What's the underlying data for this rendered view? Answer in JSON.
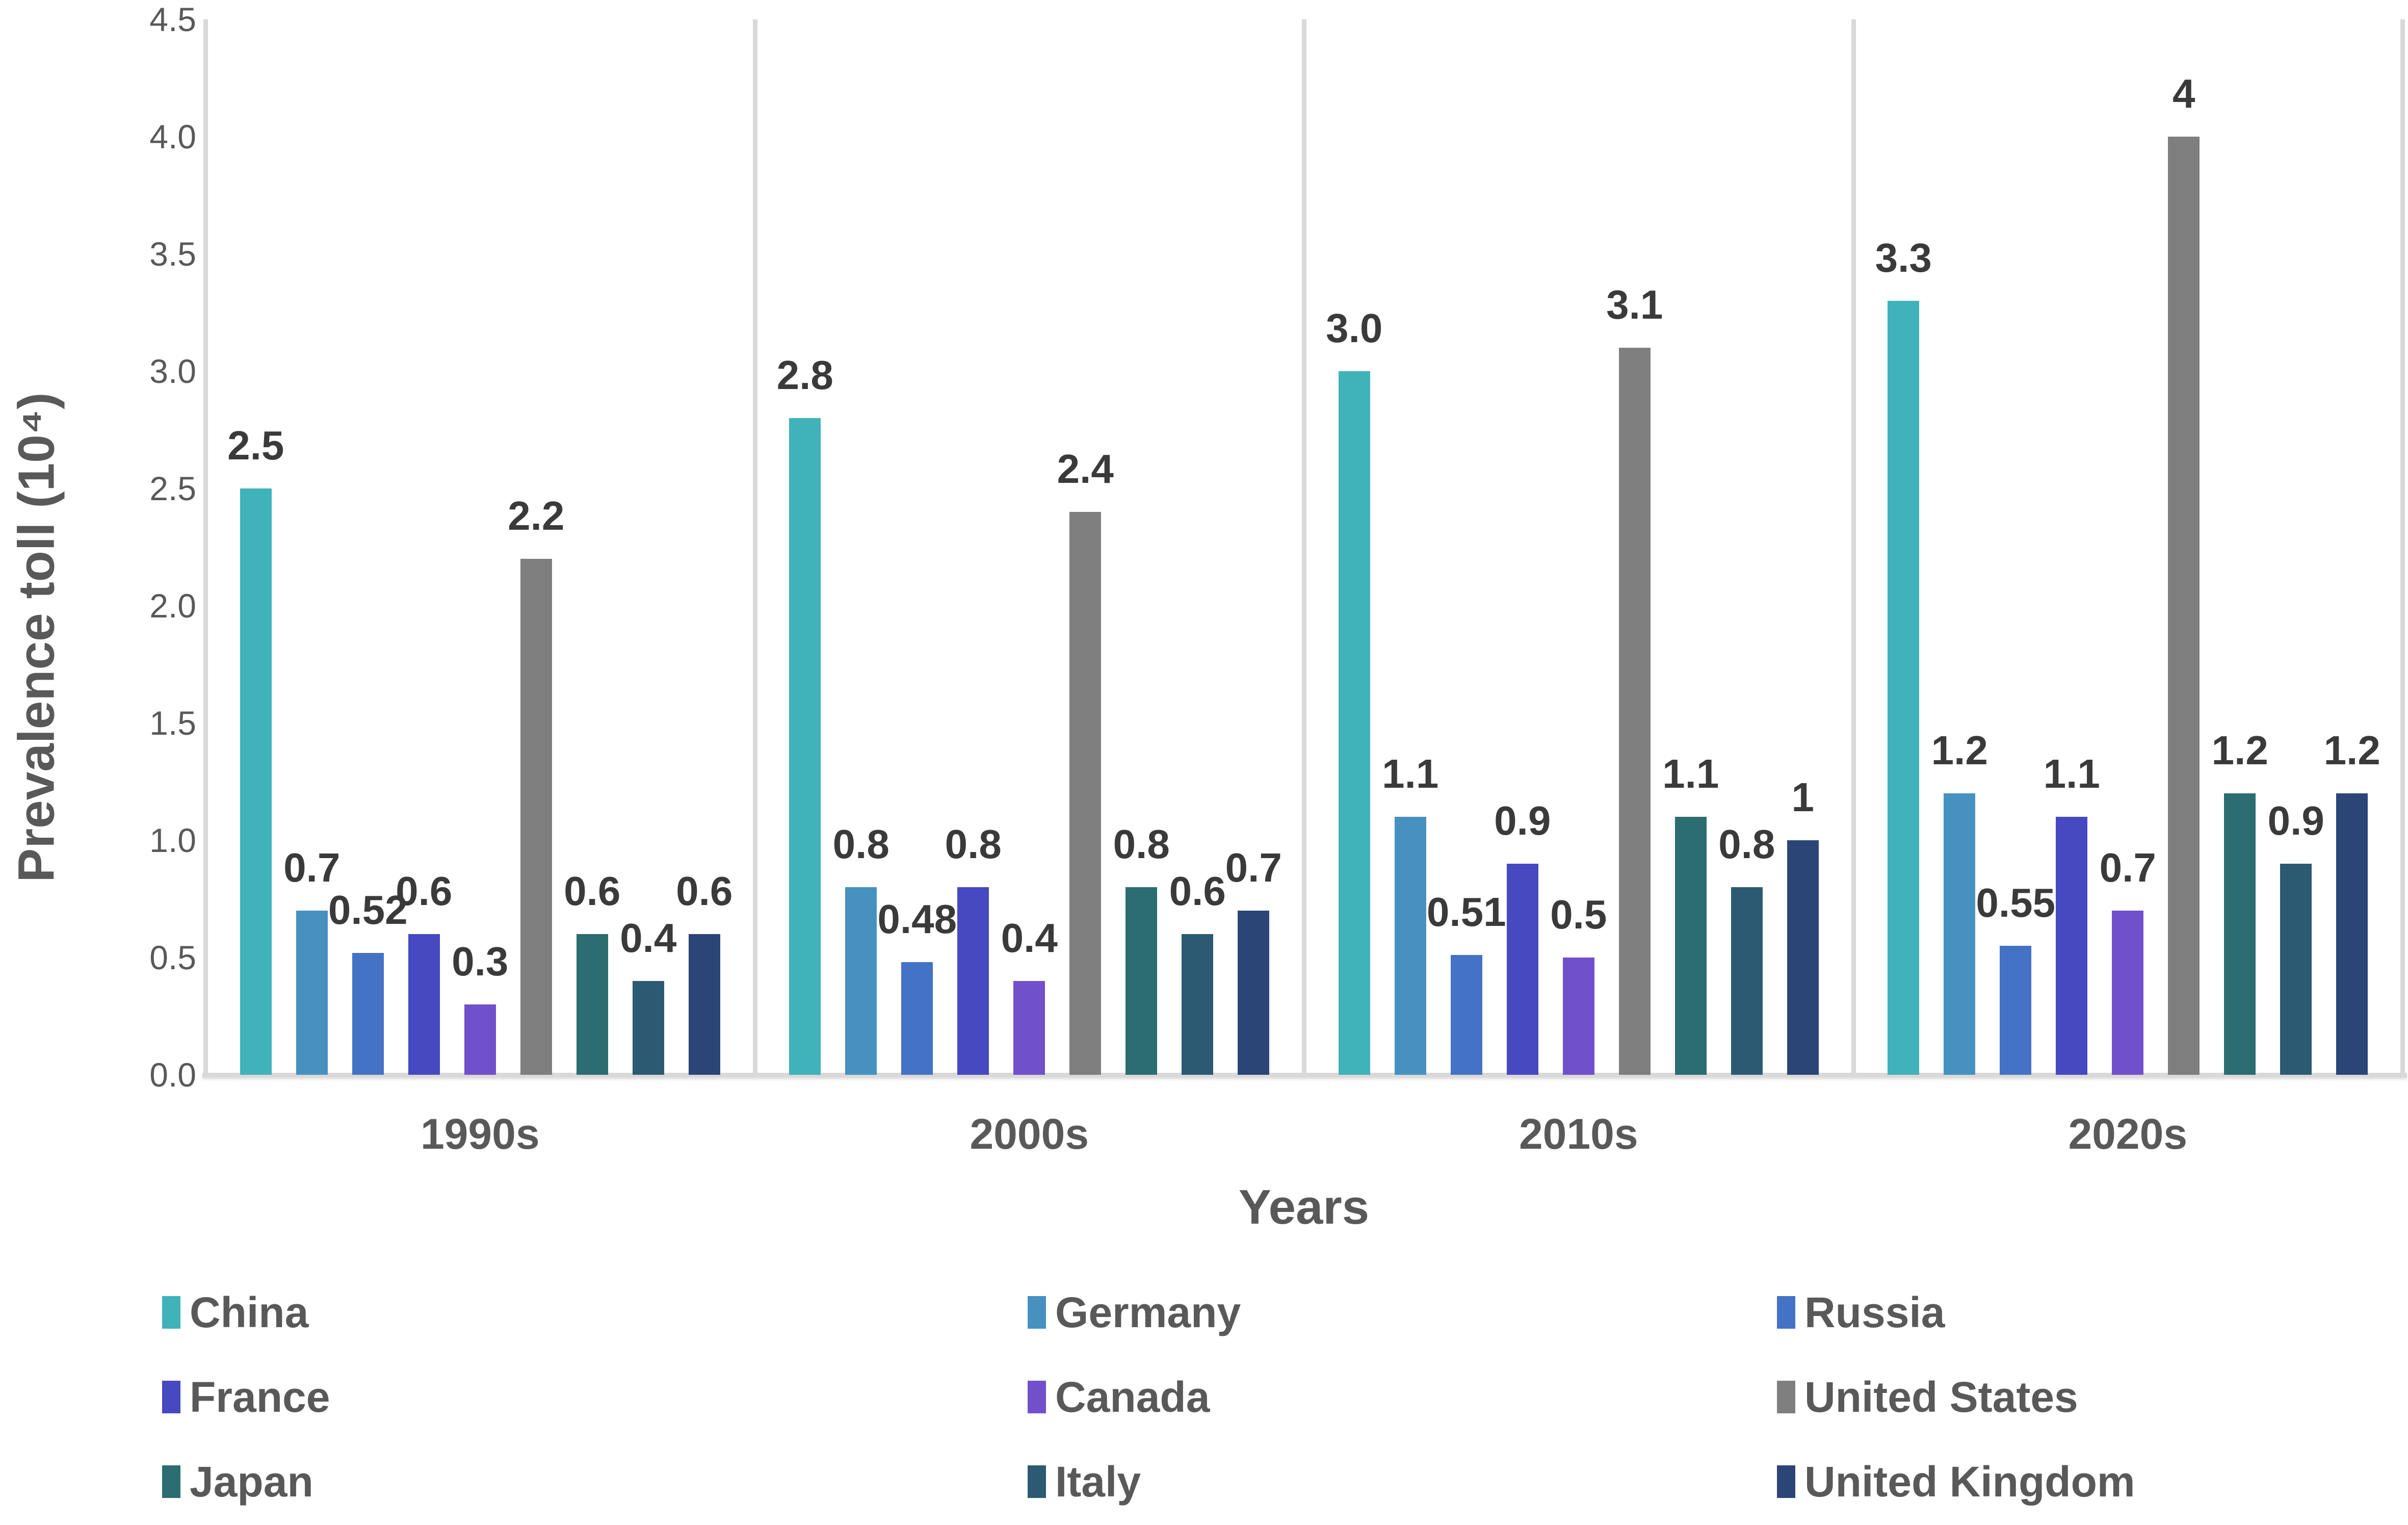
{
  "chart_data": {
    "type": "bar",
    "title": "",
    "xlabel": "Years",
    "ylabel": "Prevalence toll (10⁴)",
    "ylim": [
      0,
      4.5
    ],
    "ytick_step": 0.5,
    "yticks": [
      "4.5",
      "4.0",
      "3.5",
      "3.0",
      "2.5",
      "2.0",
      "1.5",
      "1.0",
      "0.5",
      "0.0"
    ],
    "categories": [
      "1990s",
      "2000s",
      "2010s",
      "2020s"
    ],
    "series": [
      {
        "name": "China",
        "color": "#3fb3b9",
        "values": [
          2.5,
          2.8,
          3.0,
          3.3
        ],
        "labels": [
          "2.5",
          "2.8",
          "3.0",
          "3.3"
        ]
      },
      {
        "name": "Germany",
        "color": "#4791c1",
        "values": [
          0.7,
          0.8,
          1.1,
          1.2
        ],
        "labels": [
          "0.7",
          "0.8",
          "1.1",
          "1.2"
        ]
      },
      {
        "name": "Russia",
        "color": "#4472c4",
        "values": [
          0.52,
          0.48,
          0.51,
          0.55
        ],
        "labels": [
          "0.52",
          "0.48",
          "0.51",
          "0.55"
        ]
      },
      {
        "name": "France",
        "color": "#4649c0",
        "values": [
          0.6,
          0.8,
          0.9,
          1.1
        ],
        "labels": [
          "0.6",
          "0.8",
          "0.9",
          "1.1"
        ]
      },
      {
        "name": "Canada",
        "color": "#7150cb",
        "values": [
          0.3,
          0.4,
          0.5,
          0.7
        ],
        "labels": [
          "0.3",
          "0.4",
          "0.5",
          "0.7"
        ]
      },
      {
        "name": "United States",
        "color": "#7f7f7f",
        "values": [
          2.2,
          2.4,
          3.1,
          4.0
        ],
        "labels": [
          "2.2",
          "2.4",
          "3.1",
          "4"
        ]
      },
      {
        "name": "Japan",
        "color": "#2b6d70",
        "values": [
          0.6,
          0.8,
          1.1,
          1.2
        ],
        "labels": [
          "0.6",
          "0.8",
          "1.1",
          "1.2"
        ]
      },
      {
        "name": "Italy",
        "color": "#2c5a73",
        "values": [
          0.4,
          0.6,
          0.8,
          0.9
        ],
        "labels": [
          "0.4",
          "0.6",
          "0.8",
          "0.9"
        ]
      },
      {
        "name": "United Kingdom",
        "color": "#2c4577",
        "values": [
          0.6,
          0.7,
          1.0,
          1.2
        ],
        "labels": [
          "0.6",
          "0.7",
          "1",
          "1.2"
        ]
      }
    ],
    "legend_position": "bottom",
    "grid": false,
    "axis_color": "#d9d9d9"
  }
}
